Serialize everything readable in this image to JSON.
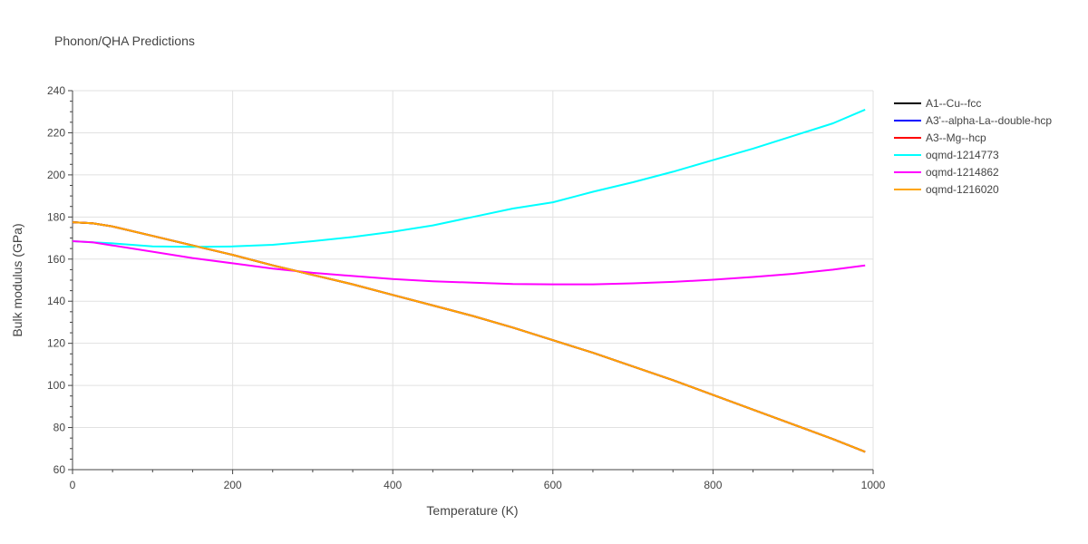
{
  "chart_data": {
    "type": "line",
    "title": "Phonon/QHA Predictions",
    "xlabel": "Temperature (K)",
    "ylabel": "Bulk modulus (GPa)",
    "xlim": [
      0,
      1000
    ],
    "ylim": [
      60,
      240
    ],
    "xticks": [
      0,
      200,
      400,
      600,
      800,
      1000
    ],
    "yticks": [
      60,
      80,
      100,
      120,
      140,
      160,
      180,
      200,
      220,
      240
    ],
    "grid": true,
    "legend_position": "right",
    "series": [
      {
        "name": "A1--Cu--fcc",
        "color": "#000000",
        "x": [
          0,
          25,
          50,
          100,
          150,
          200,
          250,
          300,
          350,
          400,
          450,
          500,
          550,
          600,
          650,
          700,
          750,
          800,
          850,
          900,
          950,
          990
        ],
        "y": [
          177.5,
          177,
          175.5,
          171,
          166.5,
          162,
          157,
          152.5,
          148,
          143,
          138,
          133,
          127.5,
          121.5,
          115.5,
          109,
          102.5,
          95.5,
          88.5,
          81.5,
          74.5,
          68.5
        ]
      },
      {
        "name": "A3'--alpha-La--double-hcp",
        "color": "#0000ff",
        "x": [
          0,
          25,
          50,
          100,
          150,
          200,
          250,
          300,
          350,
          400,
          450,
          500,
          550,
          600,
          650,
          700,
          750,
          800,
          850,
          900,
          950,
          990
        ],
        "y": [
          177.5,
          177,
          175.5,
          171,
          166.5,
          162,
          157,
          152.5,
          148,
          143,
          138,
          133,
          127.5,
          121.5,
          115.5,
          109,
          102.5,
          95.5,
          88.5,
          81.5,
          74.5,
          68.5
        ]
      },
      {
        "name": "A3--Mg--hcp",
        "color": "#ff0000",
        "x": [
          0,
          25,
          50,
          100,
          150,
          200,
          250,
          300,
          350,
          400,
          450,
          500,
          550,
          600,
          650,
          700,
          750,
          800,
          850,
          900,
          950,
          990
        ],
        "y": [
          177.5,
          177,
          175.5,
          171,
          166.5,
          162,
          157,
          152.5,
          148,
          143,
          138,
          133,
          127.5,
          121.5,
          115.5,
          109,
          102.5,
          95.5,
          88.5,
          81.5,
          74.5,
          68.5
        ]
      },
      {
        "name": "oqmd-1214773",
        "color": "#00ffff",
        "x": [
          0,
          25,
          50,
          100,
          150,
          200,
          250,
          300,
          350,
          400,
          450,
          500,
          550,
          600,
          650,
          700,
          750,
          800,
          850,
          900,
          950,
          990
        ],
        "y": [
          168.5,
          168,
          167.5,
          166,
          165.8,
          166,
          166.8,
          168.5,
          170.5,
          173,
          176,
          180,
          184,
          187,
          192,
          196.5,
          201.5,
          207,
          212.5,
          218.5,
          224.5,
          231
        ]
      },
      {
        "name": "oqmd-1214862",
        "color": "#ff00ff",
        "x": [
          0,
          25,
          50,
          100,
          150,
          200,
          250,
          300,
          350,
          400,
          450,
          500,
          550,
          600,
          650,
          700,
          750,
          800,
          850,
          900,
          950,
          990
        ],
        "y": [
          168.5,
          168,
          166.5,
          163.5,
          160.5,
          158,
          155.5,
          153.5,
          152,
          150.5,
          149.5,
          148.8,
          148.2,
          148,
          148,
          148.5,
          149.2,
          150.2,
          151.5,
          153,
          155,
          157
        ]
      },
      {
        "name": "oqmd-1216020",
        "color": "#ffa500",
        "x": [
          0,
          25,
          50,
          100,
          150,
          200,
          250,
          300,
          350,
          400,
          450,
          500,
          550,
          600,
          650,
          700,
          750,
          800,
          850,
          900,
          950,
          990
        ],
        "y": [
          177.5,
          177,
          175.5,
          171,
          166.5,
          162,
          157,
          152.5,
          148,
          143,
          138,
          133,
          127.5,
          121.5,
          115.5,
          109,
          102.5,
          95.5,
          88.5,
          81.5,
          74.5,
          68.5
        ]
      }
    ]
  }
}
